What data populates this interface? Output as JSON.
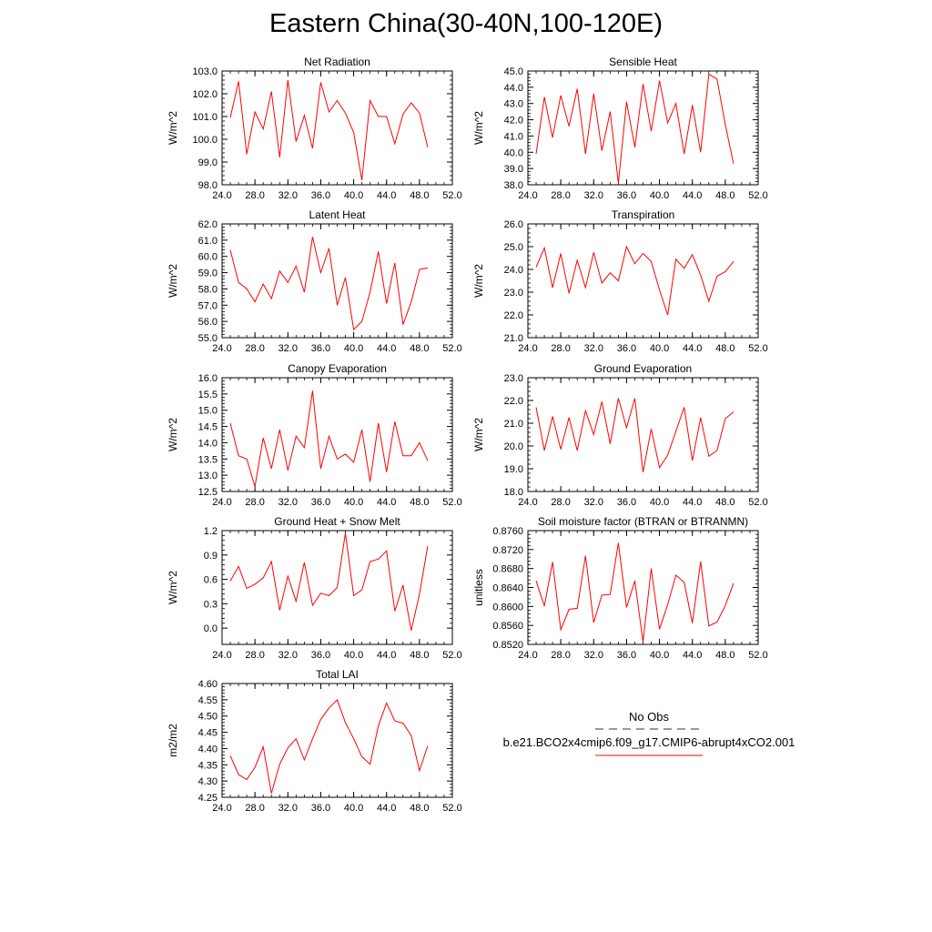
{
  "title": "Eastern China(30-40N,100-120E)",
  "legend": {
    "obs_label": "No Obs",
    "model_label": "b.e21.BCO2x4cmip6.f09_g17.CMIP6-abrupt4xCO2.001",
    "obs_color": "#2a2a8a",
    "model_color": "#ff0000"
  },
  "chart_data": [
    {
      "type": "line",
      "title": "Net Radiation",
      "ylabel": "W/m^2",
      "xlim": [
        24,
        52
      ],
      "ylim": [
        98,
        103
      ],
      "xticks": [
        "24.0",
        "28.0",
        "32.0",
        "36.0",
        "40.0",
        "44.0",
        "48.0",
        "52.0"
      ],
      "yticks": [
        "98.0",
        "99.0",
        "100.0",
        "101.0",
        "102.0",
        "103.0"
      ],
      "x": [
        25,
        26,
        27,
        28,
        29,
        30,
        31,
        32,
        33,
        34,
        35,
        36,
        37,
        38,
        39,
        40,
        41,
        42,
        43,
        44,
        45,
        46,
        47,
        48,
        49
      ],
      "series": [
        {
          "color": "#ff0000",
          "values": [
            100.95,
            102.55,
            99.35,
            101.2,
            100.45,
            102.1,
            99.2,
            102.6,
            99.9,
            101.05,
            99.6,
            102.5,
            101.2,
            101.7,
            101.15,
            100.3,
            98.2,
            101.7,
            101.0,
            101.0,
            99.8,
            101.1,
            101.6,
            101.15,
            99.65
          ]
        }
      ]
    },
    {
      "type": "line",
      "title": "Sensible Heat",
      "ylabel": "W/m^2",
      "xlim": [
        24,
        52
      ],
      "ylim": [
        38,
        45
      ],
      "xticks": [
        "24.0",
        "28.0",
        "32.0",
        "36.0",
        "40.0",
        "44.0",
        "48.0",
        "52.0"
      ],
      "yticks": [
        "38.0",
        "39.0",
        "40.0",
        "41.0",
        "42.0",
        "43.0",
        "44.0",
        "45.0"
      ],
      "x": [
        25,
        26,
        27,
        28,
        29,
        30,
        31,
        32,
        33,
        34,
        35,
        36,
        37,
        38,
        39,
        40,
        41,
        42,
        43,
        44,
        45,
        46,
        47,
        48,
        49
      ],
      "series": [
        {
          "color": "#ff0000",
          "values": [
            39.9,
            43.4,
            40.9,
            43.5,
            41.6,
            43.9,
            39.9,
            43.6,
            40.1,
            42.5,
            38.1,
            43.1,
            40.3,
            44.2,
            41.3,
            44.4,
            41.8,
            43.0,
            39.9,
            42.9,
            40.0,
            44.8,
            44.5,
            41.7,
            39.3
          ]
        }
      ]
    },
    {
      "type": "line",
      "title": "Latent Heat",
      "ylabel": "W/m^2",
      "xlim": [
        24,
        52
      ],
      "ylim": [
        55,
        62
      ],
      "xticks": [
        "24.0",
        "28.0",
        "32.0",
        "36.0",
        "40.0",
        "44.0",
        "48.0",
        "52.0"
      ],
      "yticks": [
        "55.0",
        "56.0",
        "57.0",
        "58.0",
        "59.0",
        "60.0",
        "61.0",
        "62.0"
      ],
      "x": [
        25,
        26,
        27,
        28,
        29,
        30,
        31,
        32,
        33,
        34,
        35,
        36,
        37,
        38,
        39,
        40,
        41,
        42,
        43,
        44,
        45,
        46,
        47,
        48,
        49
      ],
      "series": [
        {
          "color": "#ff0000",
          "values": [
            60.4,
            58.4,
            58.0,
            57.2,
            58.3,
            57.4,
            59.1,
            58.4,
            59.4,
            57.8,
            61.2,
            59.0,
            60.5,
            57.0,
            58.7,
            55.5,
            56.0,
            57.8,
            60.3,
            57.1,
            59.6,
            55.8,
            57.2,
            59.2,
            59.3
          ]
        }
      ]
    },
    {
      "type": "line",
      "title": "Transpiration",
      "ylabel": "W/m^2",
      "xlim": [
        24,
        52
      ],
      "ylim": [
        21,
        26
      ],
      "xticks": [
        "24.0",
        "28.0",
        "32.0",
        "36.0",
        "40.0",
        "44.0",
        "48.0",
        "52.0"
      ],
      "yticks": [
        "21.0",
        "22.0",
        "23.0",
        "24.0",
        "25.0",
        "26.0"
      ],
      "x": [
        25,
        26,
        27,
        28,
        29,
        30,
        31,
        32,
        33,
        34,
        35,
        36,
        37,
        38,
        39,
        40,
        41,
        42,
        43,
        44,
        45,
        46,
        47,
        48,
        49
      ],
      "series": [
        {
          "color": "#ff0000",
          "values": [
            24.1,
            24.95,
            23.2,
            24.7,
            22.95,
            24.4,
            23.2,
            24.75,
            23.4,
            23.85,
            23.5,
            25.0,
            24.25,
            24.7,
            24.35,
            23.1,
            22.0,
            24.45,
            24.05,
            24.65,
            23.75,
            22.6,
            23.7,
            23.9,
            24.35
          ]
        }
      ]
    },
    {
      "type": "line",
      "title": "Canopy Evaporation",
      "ylabel": "W/m^2",
      "xlim": [
        24,
        52
      ],
      "ylim": [
        12.5,
        16
      ],
      "xticks": [
        "24.0",
        "28.0",
        "32.0",
        "36.0",
        "40.0",
        "44.0",
        "48.0",
        "52.0"
      ],
      "yticks": [
        "12.5",
        "13.0",
        "13.5",
        "14.0",
        "14.5",
        "15.0",
        "15.5",
        "16.0"
      ],
      "x": [
        25,
        26,
        27,
        28,
        29,
        30,
        31,
        32,
        33,
        34,
        35,
        36,
        37,
        38,
        39,
        40,
        41,
        42,
        43,
        44,
        45,
        46,
        47,
        48,
        49
      ],
      "series": [
        {
          "color": "#ff0000",
          "values": [
            14.6,
            13.6,
            13.5,
            12.65,
            14.15,
            13.2,
            14.4,
            13.15,
            14.2,
            13.85,
            15.6,
            13.2,
            14.2,
            13.5,
            13.65,
            13.4,
            14.4,
            12.8,
            14.6,
            13.1,
            14.65,
            13.6,
            13.6,
            14.0,
            13.45
          ]
        }
      ]
    },
    {
      "type": "line",
      "title": "Ground Evaporation",
      "ylabel": "W/m^2",
      "xlim": [
        24,
        52
      ],
      "ylim": [
        18,
        23
      ],
      "xticks": [
        "24.0",
        "28.0",
        "32.0",
        "36.0",
        "40.0",
        "44.0",
        "48.0",
        "52.0"
      ],
      "yticks": [
        "18.0",
        "19.0",
        "20.0",
        "21.0",
        "22.0",
        "23.0"
      ],
      "x": [
        25,
        26,
        27,
        28,
        29,
        30,
        31,
        32,
        33,
        34,
        35,
        36,
        37,
        38,
        39,
        40,
        41,
        42,
        43,
        44,
        45,
        46,
        47,
        48,
        49
      ],
      "series": [
        {
          "color": "#ff0000",
          "values": [
            21.7,
            19.8,
            21.3,
            19.85,
            21.25,
            19.8,
            21.55,
            20.5,
            21.95,
            20.1,
            22.1,
            20.8,
            22.1,
            18.85,
            20.75,
            19.05,
            19.6,
            20.65,
            21.7,
            19.35,
            21.25,
            19.55,
            19.8,
            21.2,
            21.5
          ]
        }
      ]
    },
    {
      "type": "line",
      "title": "Ground Heat + Snow Melt",
      "ylabel": "W/m^2",
      "xlim": [
        24,
        52
      ],
      "ylim": [
        -0.2,
        1.2
      ],
      "xticks": [
        "24.0",
        "28.0",
        "32.0",
        "36.0",
        "40.0",
        "44.0",
        "48.0",
        "52.0"
      ],
      "yticks": [
        "0.0",
        "0.3",
        "0.6",
        "0.9",
        "1.2"
      ],
      "ytick_values": [
        0.0,
        0.3,
        0.6,
        0.9,
        1.2
      ],
      "x": [
        25,
        26,
        27,
        28,
        29,
        30,
        31,
        32,
        33,
        34,
        35,
        36,
        37,
        38,
        39,
        40,
        41,
        42,
        43,
        44,
        45,
        46,
        47,
        48,
        49
      ],
      "series": [
        {
          "color": "#ff0000",
          "values": [
            0.58,
            0.76,
            0.49,
            0.54,
            0.62,
            0.82,
            0.22,
            0.64,
            0.33,
            0.81,
            0.28,
            0.43,
            0.4,
            0.5,
            1.17,
            0.4,
            0.47,
            0.82,
            0.85,
            0.95,
            0.21,
            0.53,
            -0.03,
            0.42,
            1.01
          ]
        }
      ]
    },
    {
      "type": "line",
      "title": "Soil moisture factor (BTRAN or BTRANMN)",
      "ylabel": "unitless",
      "xlim": [
        24,
        52
      ],
      "ylim": [
        0.852,
        0.876
      ],
      "xticks": [
        "24.0",
        "28.0",
        "32.0",
        "36.0",
        "40.0",
        "44.0",
        "48.0",
        "52.0"
      ],
      "yticks": [
        "0.8520",
        "0.8560",
        "0.8600",
        "0.8640",
        "0.8680",
        "0.8720",
        "0.8760"
      ],
      "x": [
        25,
        26,
        27,
        28,
        29,
        30,
        31,
        32,
        33,
        34,
        35,
        36,
        37,
        38,
        39,
        40,
        41,
        42,
        43,
        44,
        45,
        46,
        47,
        48,
        49
      ],
      "series": [
        {
          "color": "#ff0000",
          "values": [
            0.8654,
            0.8601,
            0.8694,
            0.8551,
            0.8594,
            0.8596,
            0.8707,
            0.8566,
            0.8624,
            0.8625,
            0.8734,
            0.8598,
            0.8654,
            0.8525,
            0.868,
            0.8552,
            0.8604,
            0.8666,
            0.8651,
            0.8565,
            0.8695,
            0.8559,
            0.8567,
            0.8602,
            0.8649
          ]
        }
      ]
    },
    {
      "type": "line",
      "title": "Total LAI",
      "ylabel": "m2/m2",
      "xlim": [
        24,
        52
      ],
      "ylim": [
        4.25,
        4.6
      ],
      "xticks": [
        "24.0",
        "28.0",
        "32.0",
        "36.0",
        "40.0",
        "44.0",
        "48.0",
        "52.0"
      ],
      "yticks": [
        "4.25",
        "4.30",
        "4.35",
        "4.40",
        "4.45",
        "4.50",
        "4.55",
        "4.60"
      ],
      "x": [
        25,
        26,
        27,
        28,
        29,
        30,
        31,
        32,
        33,
        34,
        35,
        36,
        37,
        38,
        39,
        40,
        41,
        42,
        43,
        44,
        45,
        46,
        47,
        48,
        49
      ],
      "series": [
        {
          "color": "#ff0000",
          "values": [
            4.378,
            4.32,
            4.305,
            4.342,
            4.405,
            4.262,
            4.352,
            4.402,
            4.43,
            4.365,
            4.43,
            4.49,
            4.525,
            4.55,
            4.48,
            4.43,
            4.375,
            4.352,
            4.47,
            4.54,
            4.485,
            4.478,
            4.44,
            4.332,
            4.408
          ]
        }
      ]
    }
  ]
}
